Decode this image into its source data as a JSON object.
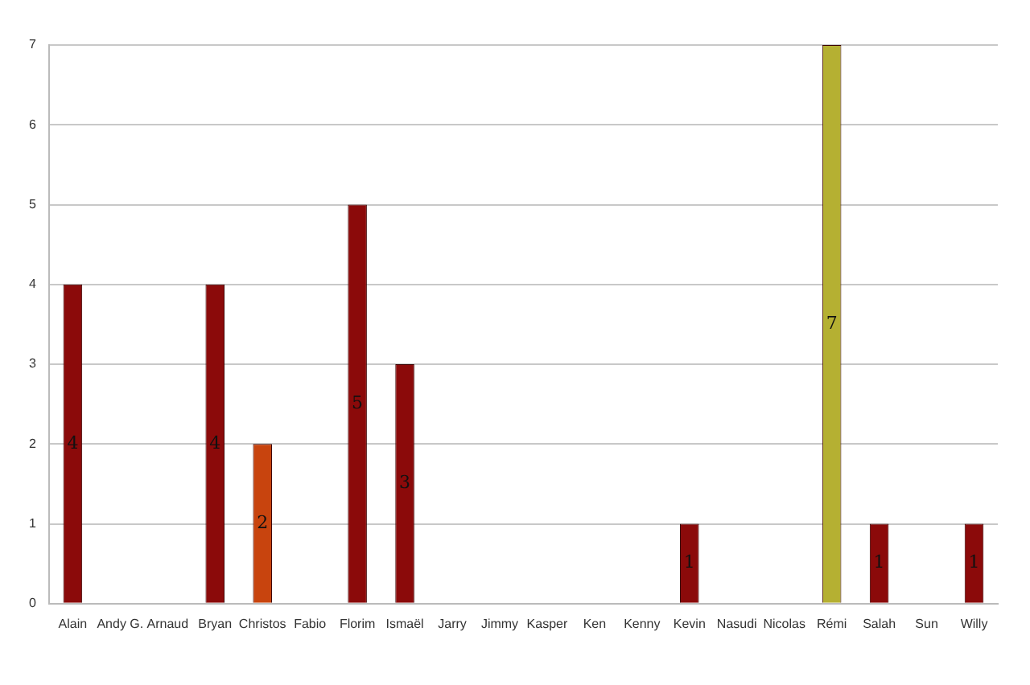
{
  "chart_data": {
    "type": "bar",
    "categories": [
      "Alain",
      "Andy G.",
      "Arnaud",
      "Bryan",
      "Christos",
      "Fabio",
      "Florim",
      "Ismaël",
      "Jarry",
      "Jimmy",
      "Kasper",
      "Ken",
      "Kenny",
      "Kevin",
      "Nasudi",
      "Nicolas",
      "Rémi",
      "Salah",
      "Sun",
      "Willy"
    ],
    "values": [
      4,
      0,
      0,
      4,
      2,
      0,
      5,
      3,
      0,
      0,
      0,
      0,
      0,
      1,
      0,
      0,
      7,
      1,
      0,
      1
    ],
    "colors": [
      "#8b0a0a",
      "#8b0a0a",
      "#8b0a0a",
      "#8b0a0a",
      "#c8440e",
      "#8b0a0a",
      "#8b0a0a",
      "#8b0a0a",
      "#8b0a0a",
      "#8b0a0a",
      "#8b0a0a",
      "#8b0a0a",
      "#8b0a0a",
      "#8b0a0a",
      "#8b0a0a",
      "#8b0a0a",
      "#b5b032",
      "#8b0a0a",
      "#8b0a0a",
      "#8b0a0a"
    ],
    "value_labels": [
      "4",
      null,
      null,
      "4",
      "2",
      null,
      "5",
      "3",
      null,
      null,
      null,
      null,
      null,
      "1",
      null,
      null,
      "7",
      "1",
      null,
      "1"
    ],
    "ylim": [
      0,
      7
    ],
    "yticks": [
      0,
      1,
      2,
      3,
      4,
      5,
      6,
      7
    ],
    "grid": "y",
    "legend": false
  }
}
